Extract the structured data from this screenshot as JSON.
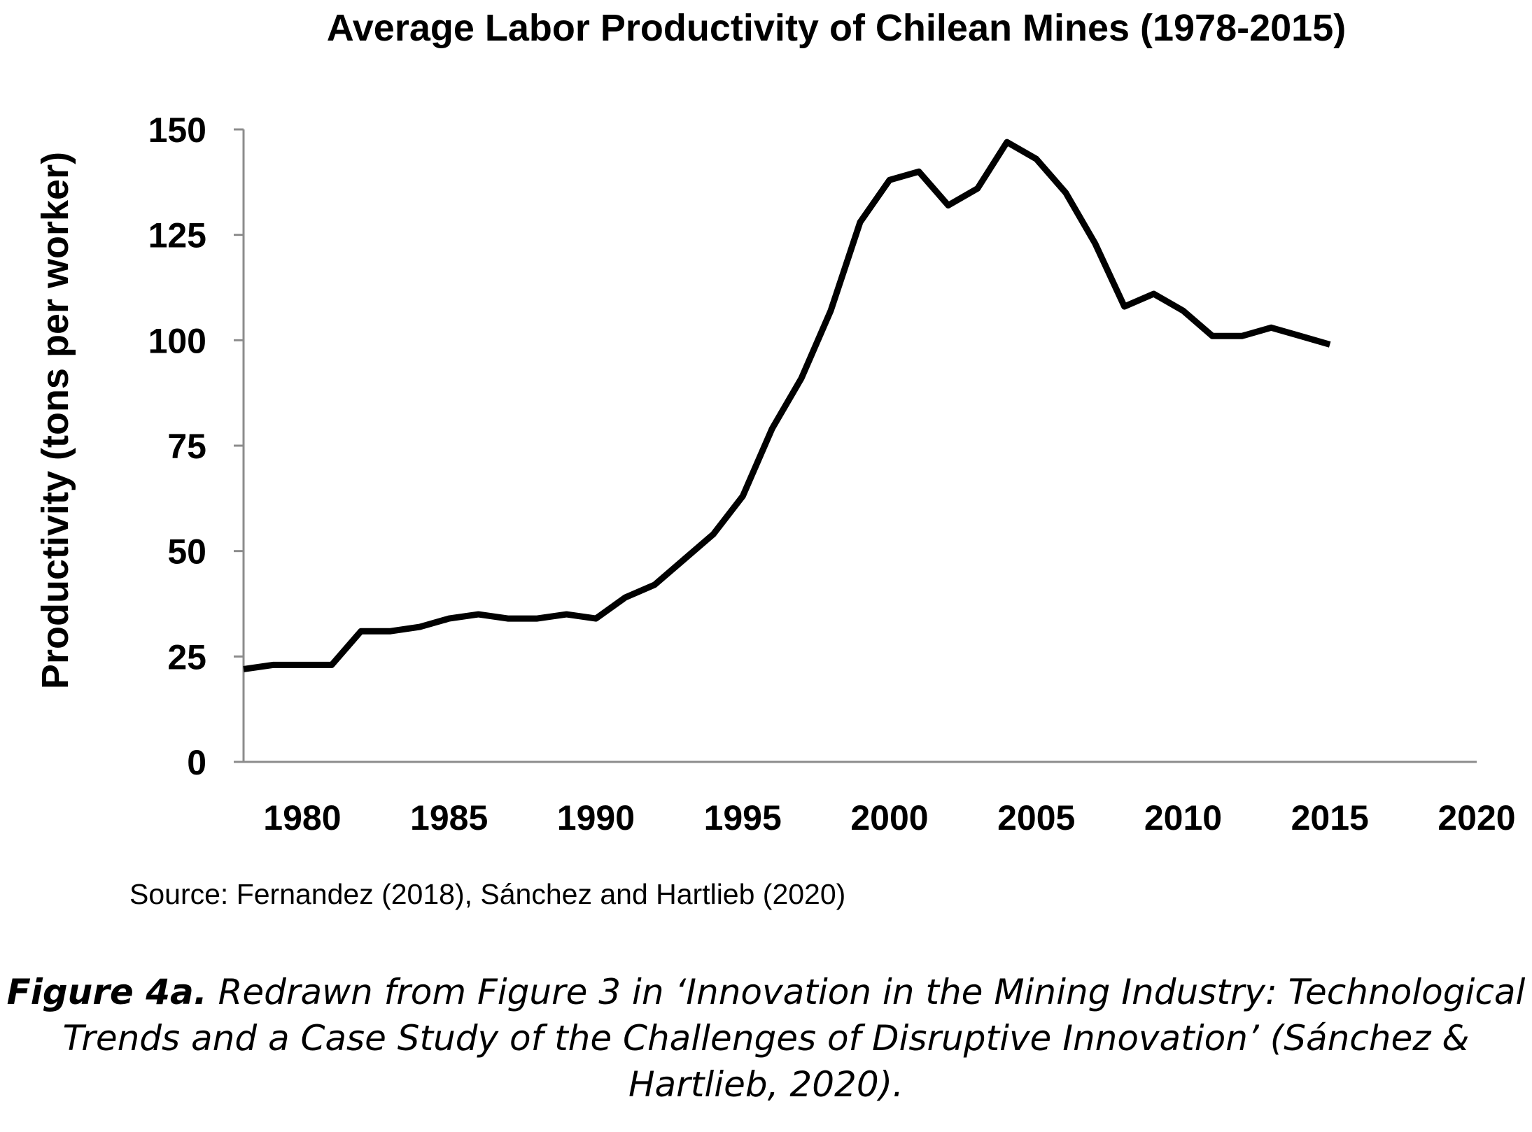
{
  "chart_data": {
    "type": "line",
    "title": "Average Labor Productivity of Chilean Mines (1978-2015)",
    "xlabel": "",
    "ylabel": "Productivity (tons per worker)",
    "xlim": [
      1978,
      2020
    ],
    "ylim": [
      0,
      150
    ],
    "xticks": [
      1980,
      1985,
      1990,
      1995,
      2000,
      2005,
      2010,
      2015,
      2020
    ],
    "yticks": [
      0,
      25,
      50,
      75,
      100,
      125,
      150
    ],
    "grid": false,
    "legend": "none",
    "line_color": "#000000",
    "series": [
      {
        "x": [
          1978,
          1979,
          1980,
          1981,
          1982,
          1983,
          1984,
          1985,
          1986,
          1987,
          1988,
          1989,
          1990,
          1991,
          1992,
          1993,
          1994,
          1995,
          1996,
          1997,
          1998,
          1999,
          2000,
          2001,
          2002,
          2003,
          2004,
          2005,
          2006,
          2007,
          2008,
          2009,
          2010,
          2011,
          2012,
          2013,
          2014,
          2015
        ],
        "values": [
          22,
          23,
          23,
          23,
          31,
          31,
          32,
          34,
          35,
          34,
          34,
          35,
          34,
          39,
          42,
          48,
          54,
          63,
          79,
          91,
          107,
          128,
          138,
          140,
          132,
          136,
          147,
          143,
          135,
          123,
          108,
          111,
          107,
          101,
          101,
          103,
          101,
          99
        ]
      }
    ]
  },
  "source_note": "Source:  Fernandez (2018), Sánchez and Hartlieb (2020)",
  "caption": {
    "label": "Figure 4a.",
    "text": " Redrawn from Figure 3 in ‘Innovation in the Mining Industry: Technological Trends and a Case Study of the Challenges of Disruptive Innovation’ (Sánchez & Hartlieb, 2020)."
  }
}
